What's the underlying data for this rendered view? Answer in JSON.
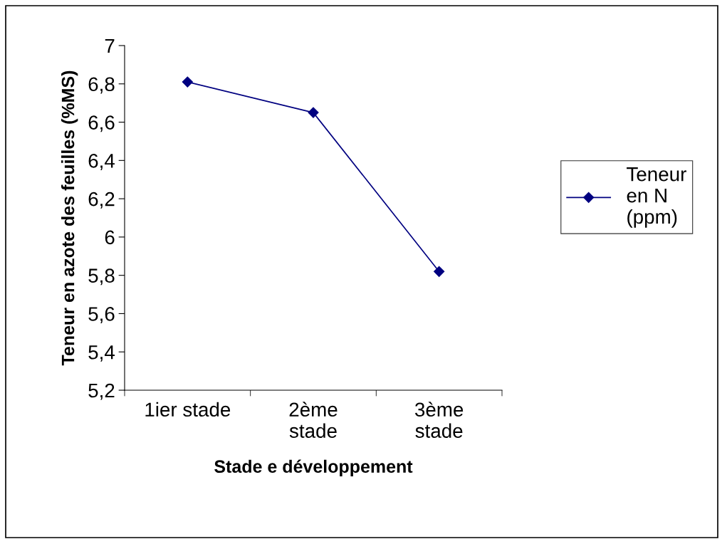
{
  "chart_data": {
    "type": "line",
    "xlabel": "Stade e développement",
    "ylabel": "Teneur en azote des feuilles (%MS)",
    "categories": [
      "1ier stade",
      "2ème\nstade",
      "3ème\nstade"
    ],
    "series": [
      {
        "name": "Teneur\nen N\n(ppm)",
        "color": "#000080",
        "values": [
          6.81,
          6.65,
          5.82
        ]
      }
    ],
    "ylim": [
      5.2,
      7
    ],
    "yticks": [
      {
        "value": 5.2,
        "label": "5,2"
      },
      {
        "value": 5.4,
        "label": "5,4"
      },
      {
        "value": 5.6,
        "label": "5,6"
      },
      {
        "value": 5.8,
        "label": "5,8"
      },
      6,
      {
        "value": 6.2,
        "label": "6,2"
      },
      {
        "value": 6.4,
        "label": "6,4"
      },
      {
        "value": 6.6,
        "label": "6,6"
      },
      {
        "value": 6.8,
        "label": "6,8"
      },
      7
    ],
    "grid": false,
    "legend": "right",
    "marker": "diamond",
    "line_style": "solid"
  }
}
